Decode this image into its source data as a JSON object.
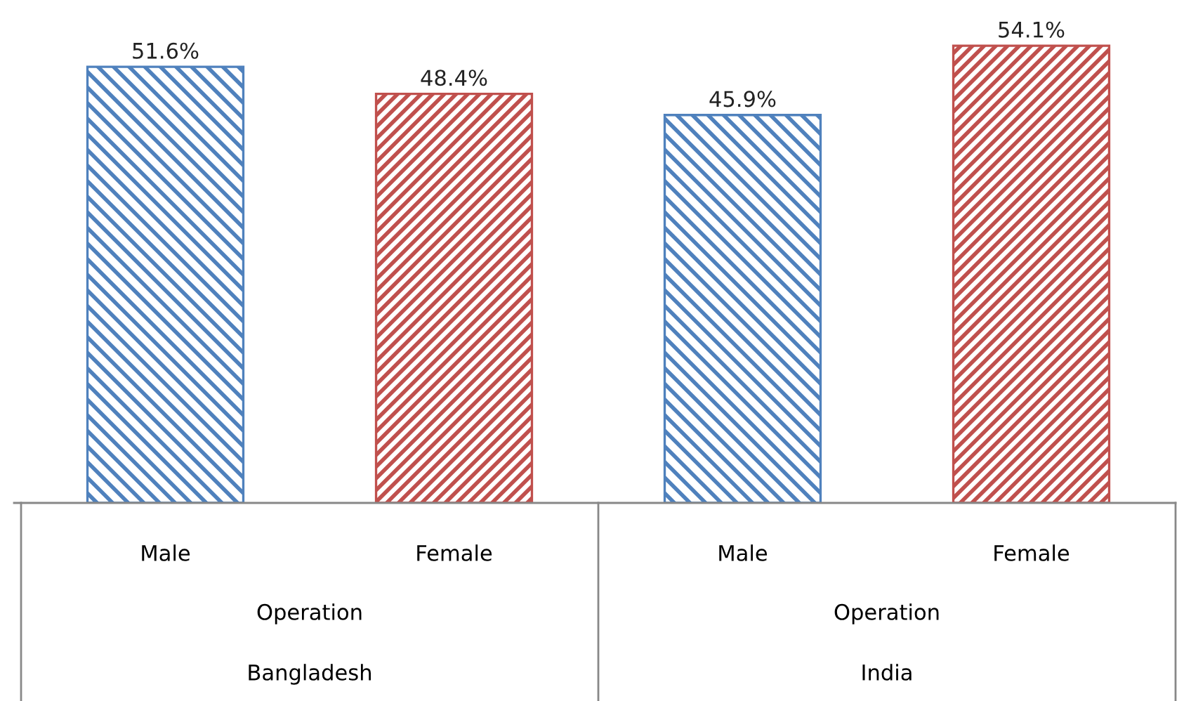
{
  "chart_data": {
    "type": "bar",
    "categories": [
      "Male",
      "Female",
      "Male",
      "Female"
    ],
    "values": [
      51.6,
      48.4,
      45.9,
      54.1
    ],
    "colors": [
      "#4f81bd",
      "#c0504d",
      "#4f81bd",
      "#c0504d"
    ],
    "value_labels": [
      "51.6%",
      "48.4%",
      "45.9%",
      "54.1%"
    ],
    "tick_labels": "x",
    "legend": false,
    "annotations": [
      "Operation",
      "Operation",
      "Bangladesh",
      "India"
    ]
  }
}
